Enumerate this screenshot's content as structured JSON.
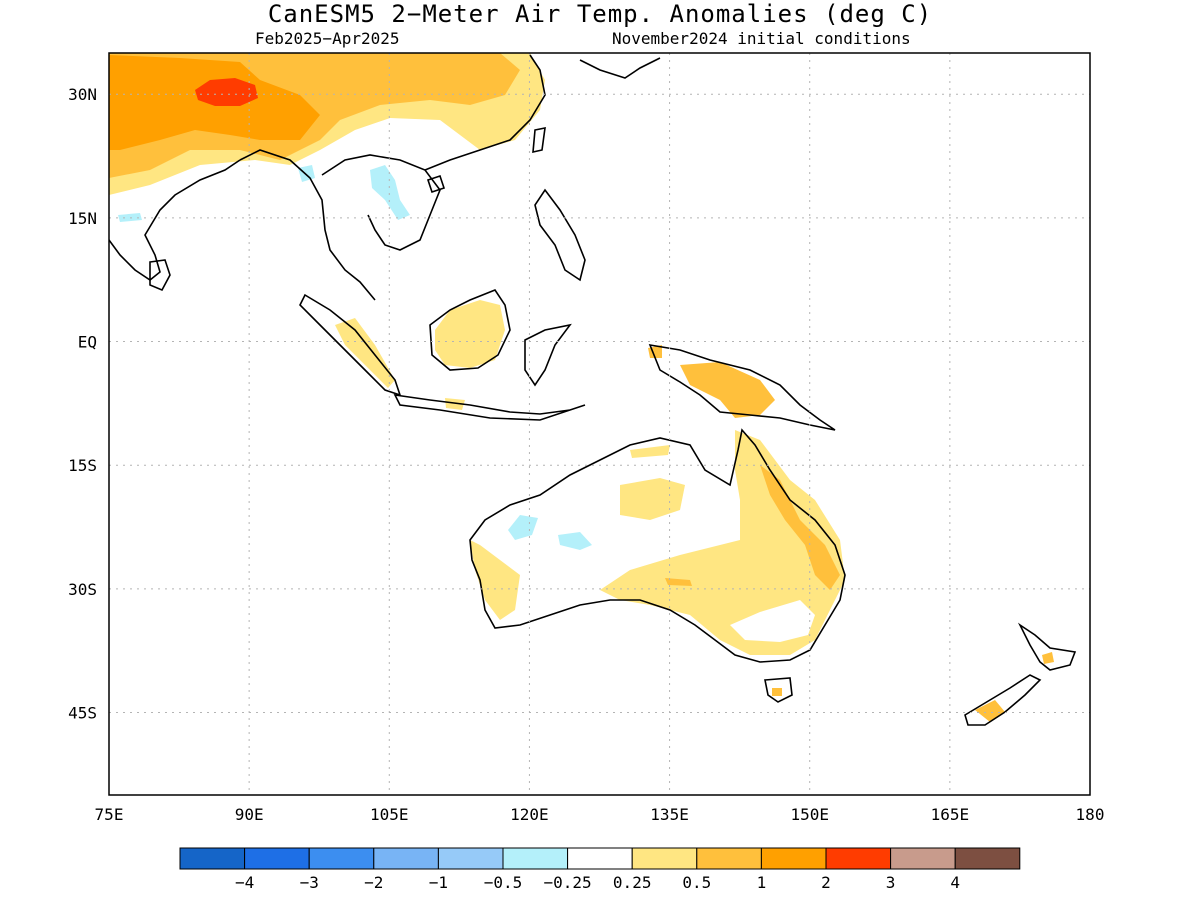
{
  "title": "CanESM5 2−Meter Air Temp. Anomalies (deg C)",
  "subtitle_left": "Feb2025−Apr2025",
  "subtitle_right": "November2024 initial conditions",
  "axes": {
    "x_ticks": [
      "75E",
      "90E",
      "105E",
      "120E",
      "135E",
      "150E",
      "165E",
      "180"
    ],
    "x_values": [
      75,
      90,
      105,
      120,
      135,
      150,
      165,
      180
    ],
    "y_ticks": [
      "30N",
      "15N",
      "EQ",
      "15S",
      "30S",
      "45S"
    ],
    "y_values": [
      30,
      15,
      0,
      -15,
      -30,
      -45
    ],
    "lon_range": [
      75,
      180
    ],
    "lat_range": [
      -55,
      35
    ],
    "grid": true
  },
  "colorbar": {
    "colors": [
      "#1565c8",
      "#1e6fe6",
      "#3c8ef0",
      "#78b4f5",
      "#96caf8",
      "#b4f0fa",
      "#ffffff",
      "#ffe682",
      "#ffc03c",
      "#ffa000",
      "#ff3c00",
      "#c89b8c",
      "#7d4f41"
    ],
    "labels": [
      "−4",
      "−3",
      "−2",
      "−1",
      "−0.5",
      "−0.25",
      "0.25",
      "0.5",
      "1",
      "2",
      "3",
      "4"
    ]
  }
}
